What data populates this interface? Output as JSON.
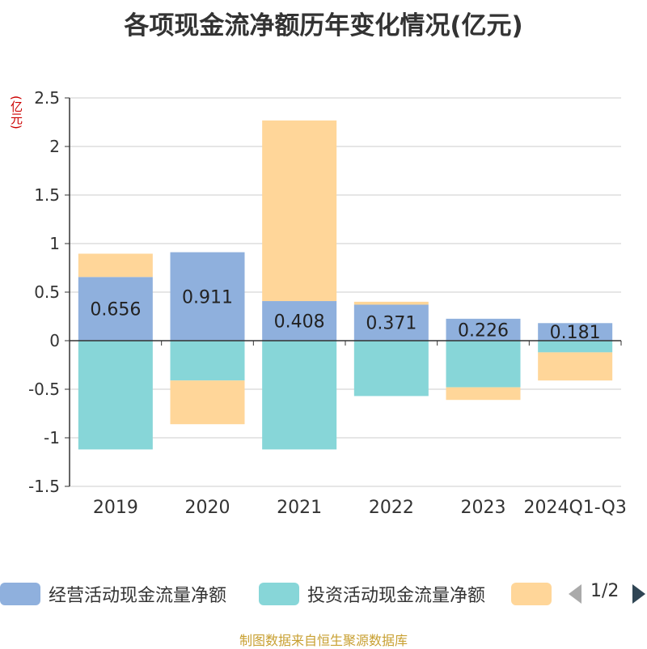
{
  "chart_data": {
    "type": "bar",
    "stacked": true,
    "title": "各项现金流净额历年变化情况(亿元)",
    "ylabel": "(亿元)",
    "ylim": [
      -1.5,
      2.5
    ],
    "yticks": [
      2.5,
      2,
      1.5,
      1,
      0.5,
      0,
      -0.5,
      -1,
      -1.5
    ],
    "ytick_labels": [
      "2.5",
      "2",
      "1.5",
      "1",
      "0.5",
      "0",
      "-0.5",
      "-1",
      "-1.5"
    ],
    "grid": true,
    "categories": [
      "2019",
      "2020",
      "2021",
      "2022",
      "2023",
      "2024Q1-Q3"
    ],
    "series": [
      {
        "name": "经营活动现金流量净额",
        "color": "#8fb0dd",
        "values": [
          0.656,
          0.911,
          0.408,
          0.371,
          0.226,
          0.181
        ],
        "labels": [
          "0.656",
          "0.911",
          "0.408",
          "0.371",
          "0.226",
          "0.181"
        ]
      },
      {
        "name": "投资活动现金流量净额",
        "color": "#87d6d8",
        "values": [
          -1.12,
          -0.41,
          -1.12,
          -0.57,
          -0.48,
          -0.12
        ]
      },
      {
        "name": "",
        "color": "#ffd699",
        "values": [
          0.24,
          -0.45,
          1.86,
          0.03,
          -0.13,
          -0.29
        ]
      }
    ]
  },
  "legend": {
    "page": "1/2"
  },
  "footer": {
    "source": "制图数据来自恒生聚源数据库"
  }
}
